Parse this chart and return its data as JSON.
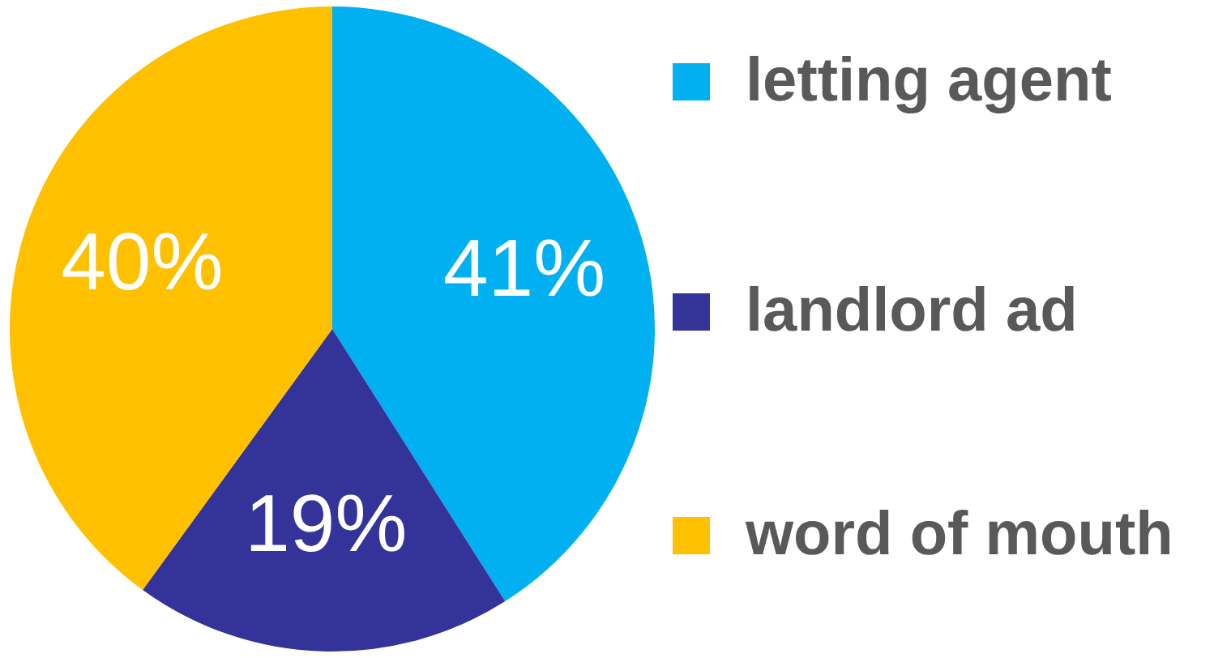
{
  "chart_data": {
    "type": "pie",
    "categories": [
      "letting agent",
      "landlord ad",
      "word of mouth"
    ],
    "values": [
      41,
      19,
      40
    ],
    "colors": [
      "#00b0f0",
      "#333399",
      "#ffc000"
    ],
    "value_labels": [
      "41%",
      "19%",
      "40%"
    ],
    "legend": "right"
  }
}
